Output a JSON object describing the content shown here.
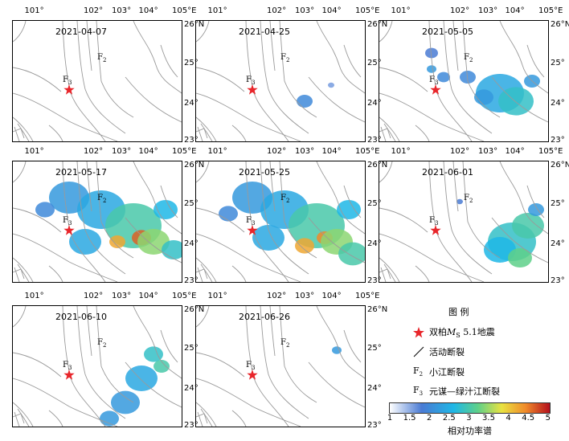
{
  "panels": [
    {
      "date": "2021-04-07"
    },
    {
      "date": "2021-04-25"
    },
    {
      "date": "2021-05-05"
    },
    {
      "date": "2021-05-17"
    },
    {
      "date": "2021-05-25"
    },
    {
      "date": "2021-06-01"
    },
    {
      "date": "2021-06-10"
    },
    {
      "date": "2021-06-26"
    }
  ],
  "axis": {
    "lon_ticks": [
      "101°",
      "102°",
      "103°",
      "104°",
      "105°E"
    ],
    "lat_ticks": [
      "26°N",
      "25°",
      "24°",
      "23°"
    ]
  },
  "faults": {
    "f2": "F",
    "f2_sub": "2",
    "f3": "F",
    "f3_sub": "3"
  },
  "legend": {
    "title": "图  例",
    "epicenter_prefix": "双柏",
    "epicenter_m": "M",
    "epicenter_sub": "S",
    "epicenter_suffix": " 5.1地震",
    "active_fault": "活动断裂",
    "f2_name": "小江断裂",
    "f3_name": "元谋—绿汁江断裂",
    "colorbar_ticks": [
      "1",
      "1.5",
      "2",
      "2.5",
      "3",
      "3.5",
      "4",
      "4.5",
      "5"
    ],
    "colorbar_label": "相对功率谱"
  },
  "colors": {
    "star": "#e8262b",
    "fault_line": "#9a9a9a"
  }
}
